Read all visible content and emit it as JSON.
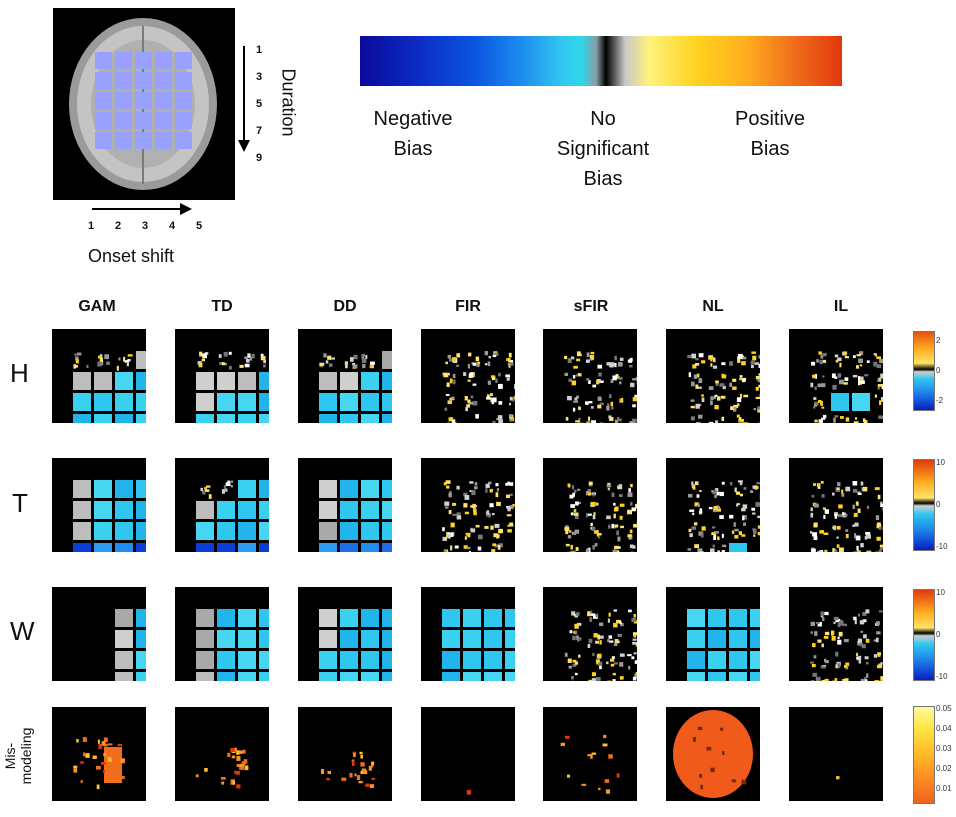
{
  "brain_panel": {
    "duration_ticks": [
      "1",
      "3",
      "5",
      "7",
      "9"
    ],
    "duration_label": "Duration",
    "onset_ticks": [
      "1",
      "2",
      "3",
      "4",
      "5"
    ],
    "onset_label": "Onset shift",
    "overlay_color": "#9aa0ff"
  },
  "bias_legend": {
    "negative": "Negative\nBias",
    "none": "No\nSignificant\nBias",
    "positive": "Positive\nBias"
  },
  "columns": [
    "GAM",
    "TD",
    "DD",
    "FIR",
    "sFIR",
    "NL",
    "IL"
  ],
  "rows": [
    "H",
    "T",
    "W",
    "Mis-modeling"
  ],
  "colorbars": {
    "H": [
      "2",
      "0",
      "-2"
    ],
    "T": [
      "10",
      "0",
      "-10"
    ],
    "W": [
      "10",
      "0",
      "-10"
    ],
    "M": [
      "0.05",
      "0.04",
      "0.03",
      "0.02",
      "0.01"
    ]
  }
}
